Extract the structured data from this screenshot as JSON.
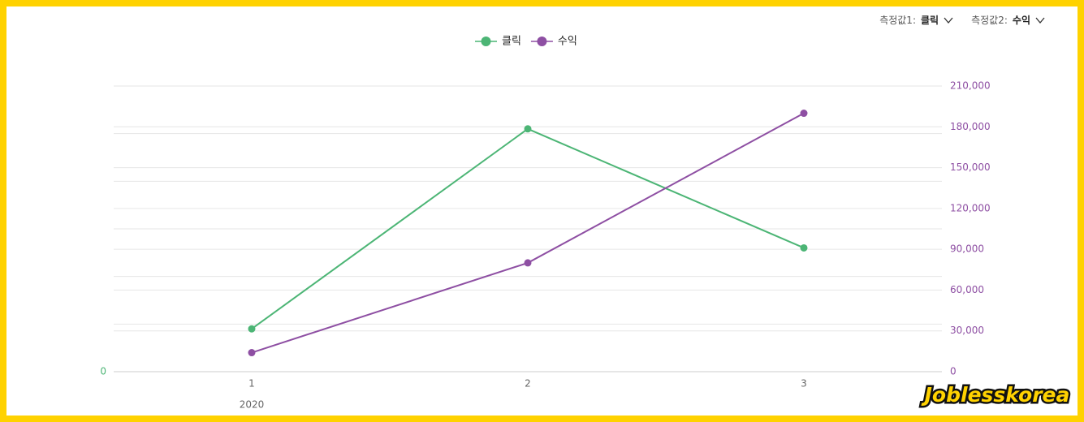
{
  "controls": [
    {
      "label": "측정값1:",
      "value": "클릭"
    },
    {
      "label": "측정값2:",
      "value": "수익"
    }
  ],
  "watermark": "Joblesskorea",
  "chart_data": {
    "type": "line",
    "categories": [
      "1",
      "2",
      "3"
    ],
    "x_group_label": "2020",
    "series": [
      {
        "name": "클릭",
        "color": "#4cb575",
        "values": [
          0.9,
          5.1,
          2.6
        ]
      },
      {
        "name": "수익",
        "color": "#8e4fa3",
        "axis": "y2",
        "values": [
          14000,
          80000,
          190000
        ]
      }
    ],
    "ylim": [
      0,
      6
    ],
    "yticks": [
      0,
      {
        "value": 1,
        "label": null
      },
      {
        "value": 2,
        "label": null
      },
      {
        "value": 3,
        "label": null
      },
      {
        "value": 4,
        "label": null
      },
      {
        "value": 5,
        "label": null
      },
      {
        "value": 6,
        "label": null
      }
    ],
    "y2lim": [
      0,
      210000
    ],
    "y2ticks": [
      0,
      {
        "value": 30000,
        "label": "30,000"
      },
      {
        "value": 60000,
        "label": "60,000"
      },
      {
        "value": 90000,
        "label": "90,000"
      },
      {
        "value": 120000,
        "label": "120,000"
      },
      {
        "value": 150000,
        "label": "150,000"
      },
      {
        "value": 180000,
        "label": "180,000"
      },
      {
        "value": 210000,
        "label": "210,000"
      }
    ],
    "grid": true,
    "legend": "top"
  }
}
